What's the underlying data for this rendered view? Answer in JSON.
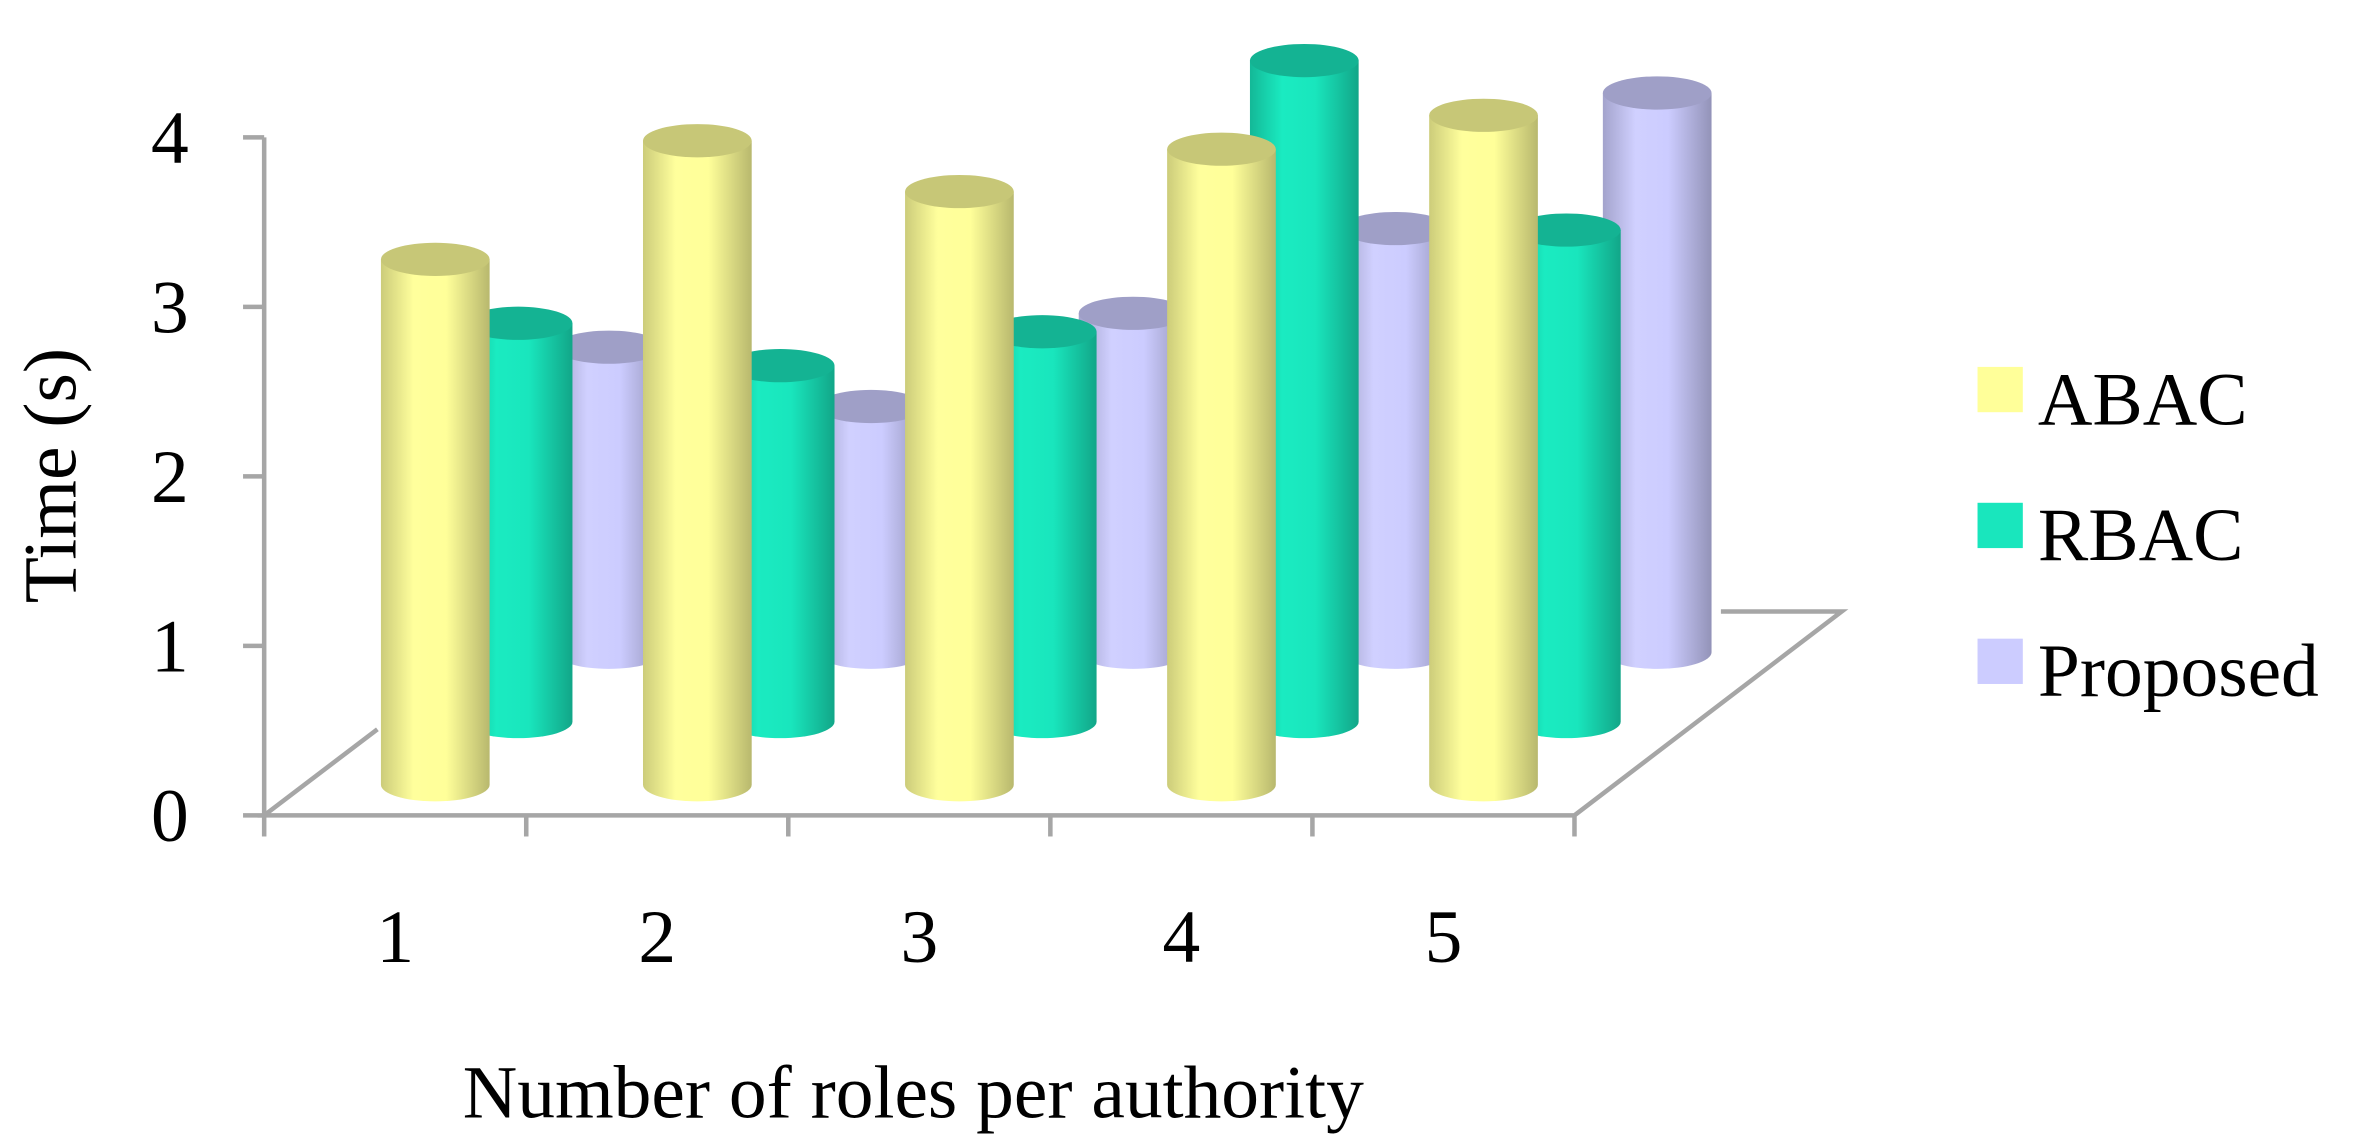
{
  "chart_data": {
    "type": "bar3d",
    "categories": [
      "1",
      "2",
      "3",
      "4",
      "5"
    ],
    "x_label": "Number of roles per authority",
    "y_label": "Time (s)",
    "ylim": [
      0,
      4
    ],
    "yticks": [
      0,
      1,
      2,
      3,
      4
    ],
    "legend": "right",
    "series": [
      {
        "name": "ABAC",
        "color": "#ffff99",
        "values": [
          3.1,
          3.8,
          3.5,
          3.75,
          3.95
        ]
      },
      {
        "name": "RBAC",
        "color": "#19e6bd",
        "values": [
          2.35,
          2.1,
          2.3,
          3.9,
          2.9
        ]
      },
      {
        "name": "Proposed",
        "color": "#ccccff",
        "values": [
          1.8,
          1.45,
          2.0,
          2.5,
          3.3
        ]
      }
    ]
  }
}
